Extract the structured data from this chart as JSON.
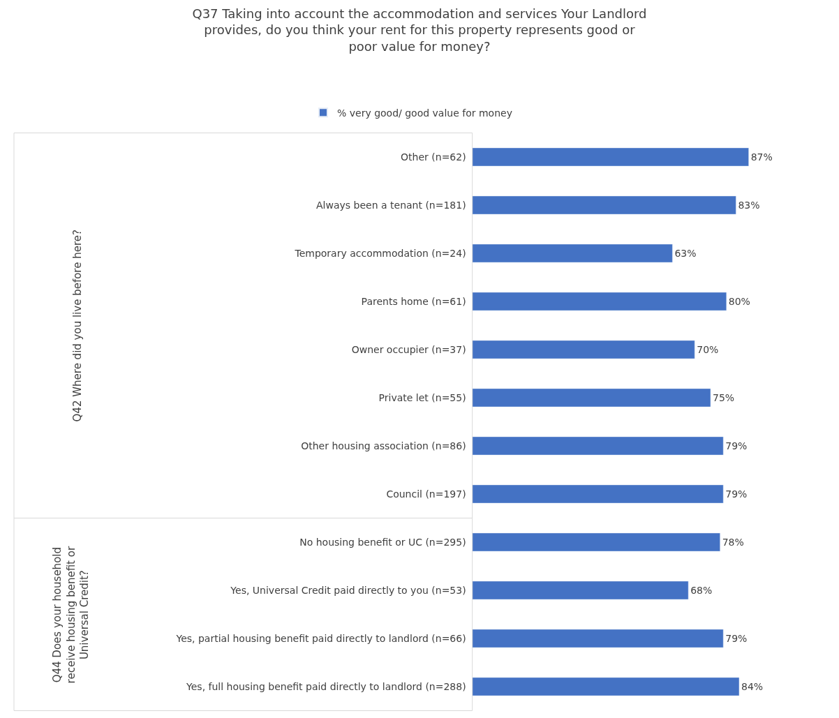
{
  "chart_data": {
    "type": "bar",
    "orientation": "horizontal",
    "title": "Q37 Taking into account the accommodation and services Your Landlord provides, do you think your rent for this property represents good or poor value for money?",
    "categories": [
      "Other (n=62)",
      "Always been a tenant (n=181)",
      "Temporary accommodation (n=24)",
      "Parents home (n=61)",
      "Owner occupier (n=37)",
      "Private let (n=55)",
      "Other housing association (n=86)",
      "Council (n=197)",
      "No housing benefit or UC (n=295)",
      "Yes, Universal Credit paid directly to you (n=53)",
      "Yes, partial housing benefit paid directly to landlord (n=66)",
      "Yes, full housing benefit paid directly to landlord (n=288)"
    ],
    "series": [
      {
        "name": "% very good/ good value for money",
        "color": "#4472c4",
        "values": [
          87,
          83,
          63,
          80,
          70,
          75,
          79,
          79,
          78,
          68,
          79,
          84
        ],
        "value_labels": [
          "87%",
          "83%",
          "63%",
          "80%",
          "70%",
          "75%",
          "79%",
          "79%",
          "78%",
          "68%",
          "79%",
          "84%"
        ]
      }
    ],
    "annotations": [
      "Q42 Where did you live before here?",
      "Q44 Does your household receive housing benefit or Universal Credit?"
    ],
    "legend": "top"
  }
}
